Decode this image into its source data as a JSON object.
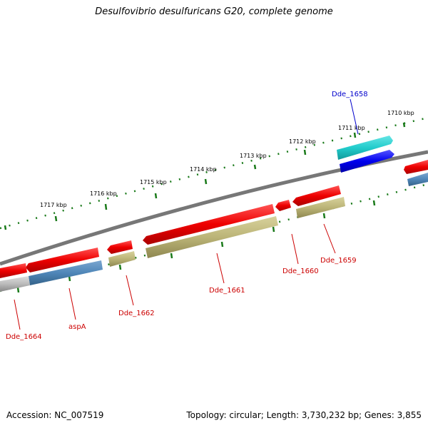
{
  "title": "Desulfovibrio desulfuricans G20, complete genome",
  "footer": {
    "accession": "Accession: NC_007519",
    "topology": "Topology: circular; Length: 3,730,232 bp; Genes: 3,855"
  },
  "scale": {
    "ticks": [
      "1710 kbp",
      "1711 kbp",
      "1712 kbp",
      "1713 kbp",
      "1714 kbp",
      "1715 kbp",
      "1716 kbp",
      "1717 kbp"
    ]
  },
  "genes": [
    {
      "label": "Dde_1658",
      "color": "#0000cc"
    },
    {
      "label": "Dde_1659",
      "color": "#cc0000"
    },
    {
      "label": "Dde_1660",
      "color": "#cc0000"
    },
    {
      "label": "Dde_1661",
      "color": "#cc0000"
    },
    {
      "label": "Dde_1662",
      "color": "#cc0000"
    },
    {
      "label": "aspA",
      "color": "#cc0000"
    },
    {
      "label": "Dde_1664",
      "color": "#cc0000"
    }
  ],
  "colors": {
    "cds": "#ee0000",
    "gene_dark": "#0000ee",
    "cyan": "#22cccc",
    "olive": "#bbb477",
    "steel": "#4f86b8",
    "gray": "#bbbbbb",
    "backbone": "#808080",
    "tick": "#1a7a1a"
  }
}
